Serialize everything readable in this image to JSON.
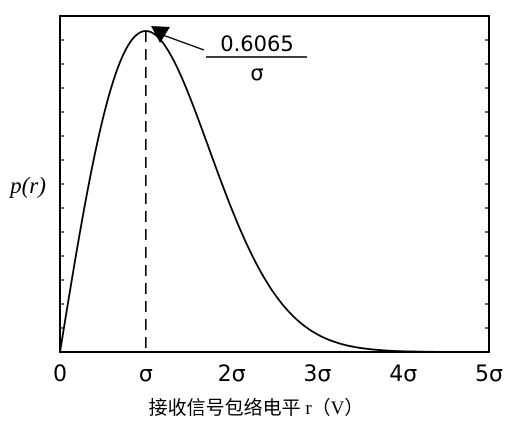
{
  "chart_data": {
    "type": "line",
    "title": "",
    "xlabel": "接收信号包络电平 r（V）",
    "ylabel": "p(r)",
    "x_tick_labels": [
      "0",
      "σ",
      "2σ",
      "3σ",
      "4σ",
      "5σ"
    ],
    "xlim": [
      0,
      5
    ],
    "ylim": [
      0,
      0.6065
    ],
    "x_units": "σ",
    "series": [
      {
        "values_x": [
          0,
          0.25,
          0.5,
          0.75,
          1.0,
          1.25,
          1.5,
          1.75,
          2.0,
          2.25,
          2.5,
          2.75,
          3.0,
          3.25,
          3.5,
          3.75,
          4.0,
          4.5,
          5.0
        ],
        "values_y": [
          0,
          0.2423,
          0.4412,
          0.5697,
          0.6065,
          0.5724,
          0.487,
          0.3813,
          0.2707,
          0.1787,
          0.1099,
          0.0631,
          0.0333,
          0.0165,
          0.0076,
          0.0034,
          0.0013,
          0.0002,
          0.0
        ]
      }
    ],
    "peak": {
      "x": 1,
      "y": 0.6065,
      "numerator": "0.6065",
      "denominator": "σ"
    },
    "grid": false,
    "legend": "none"
  }
}
